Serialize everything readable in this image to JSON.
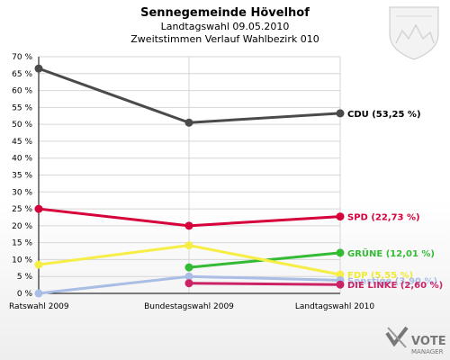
{
  "header": {
    "title": "Sennegemeinde Hövelhof",
    "subtitle1": "Landtagswahl 09.05.2010",
    "subtitle2": "Zweitstimmen Verlauf Wahlbezirk 010"
  },
  "logo": {
    "line1": "VOTE",
    "line2": "MANAGER"
  },
  "chart_data": {
    "type": "line",
    "categories": [
      "Ratswahl 2009",
      "Bundestagswahl 2009",
      "Landtagswahl 2010"
    ],
    "y_unit": "%",
    "ylim": [
      0,
      70
    ],
    "yticks": [
      0,
      5,
      10,
      15,
      20,
      25,
      30,
      35,
      40,
      45,
      50,
      55,
      60,
      65,
      70
    ],
    "ytick_labels": [
      "0 %",
      "5 %",
      "10 %",
      "15 %",
      "20 %",
      "25 %",
      "30 %",
      "35 %",
      "40 %",
      "45 %",
      "50 %",
      "55 %",
      "60 %",
      "65 %",
      "70 %"
    ],
    "grid": true,
    "series": [
      {
        "name": "CDU",
        "color": "#4a4a4a",
        "values": [
          66.5,
          50.5,
          53.25
        ],
        "label": "CDU (53,25 %)",
        "label_color": "#000000"
      },
      {
        "name": "SPD",
        "color": "#d6003a",
        "values": [
          25.0,
          20.0,
          22.73
        ],
        "label": "SPD (22,73 %)",
        "label_color": "#d6003a"
      },
      {
        "name": "GRÜNE",
        "color": "#33bb33",
        "values": [
          null,
          7.7,
          12.01
        ],
        "label": "GRÜNE (12,01 %)",
        "label_color": "#33bb33"
      },
      {
        "name": "FDP",
        "color": "#f6ee44",
        "values": [
          8.5,
          14.2,
          5.55
        ],
        "label": "FDP (5,55 %)",
        "label_color": "#f2e930"
      },
      {
        "name": "Sonstige",
        "color": "#a9bde5",
        "values": [
          0.0,
          5.0,
          3.9
        ],
        "label": "Sonstige (3,90 %)",
        "label_color": "#a9bde5"
      },
      {
        "name": "DIE LINKE",
        "color": "#cc2266",
        "values": [
          null,
          3.0,
          2.6
        ],
        "label": "DIE LINKE (2,60 %)",
        "label_color": "#cc2266"
      }
    ]
  }
}
